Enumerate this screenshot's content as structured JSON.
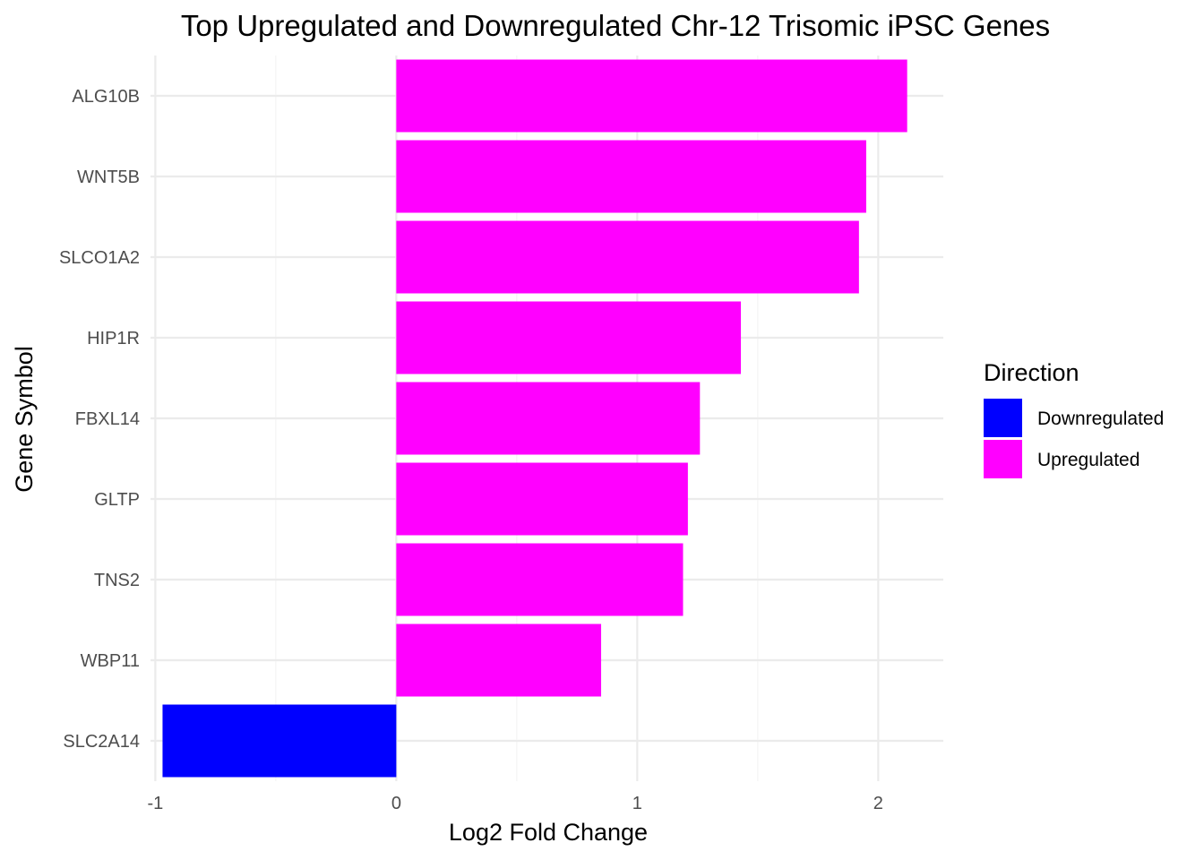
{
  "chart_data": {
    "type": "bar",
    "orientation": "horizontal",
    "title": "Top Upregulated and Downregulated Chr-12 Trisomic iPSC Genes",
    "xlabel": "Log2 Fold Change",
    "ylabel": "Gene Symbol",
    "xlim": [
      -1.02,
      2.27
    ],
    "x_ticks": [
      -1,
      0,
      1,
      2
    ],
    "x_tick_labels": [
      "-1",
      "0",
      "1",
      "2"
    ],
    "grid": true,
    "legend": {
      "title": "Direction",
      "placement": "right",
      "entries": [
        {
          "label": "Downregulated",
          "color": "#0000ff"
        },
        {
          "label": "Upregulated",
          "color": "#ff00ff"
        }
      ]
    },
    "categories": [
      "ALG10B",
      "WNT5B",
      "SLCO1A2",
      "HIP1R",
      "FBXL14",
      "GLTP",
      "TNS2",
      "WBP11",
      "SLC2A14"
    ],
    "values": [
      2.12,
      1.95,
      1.92,
      1.43,
      1.26,
      1.21,
      1.19,
      0.85,
      -0.97
    ],
    "direction": [
      "Upregulated",
      "Upregulated",
      "Upregulated",
      "Upregulated",
      "Upregulated",
      "Upregulated",
      "Upregulated",
      "Upregulated",
      "Downregulated"
    ]
  }
}
